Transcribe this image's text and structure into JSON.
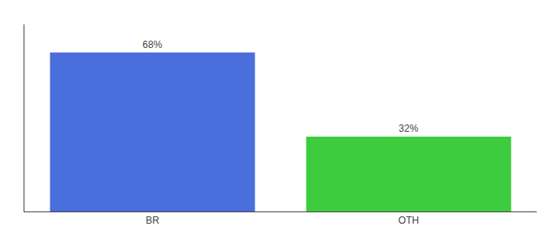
{
  "chart_data": {
    "type": "bar",
    "categories": [
      "BR",
      "OTH"
    ],
    "values": [
      68,
      32
    ],
    "value_labels": [
      "68%",
      "32%"
    ],
    "data_labels": true,
    "colors": [
      "#4a6edb",
      "#3dcc3d"
    ],
    "ylim": [
      0,
      80
    ],
    "grid": false,
    "tick_labels": "x"
  }
}
